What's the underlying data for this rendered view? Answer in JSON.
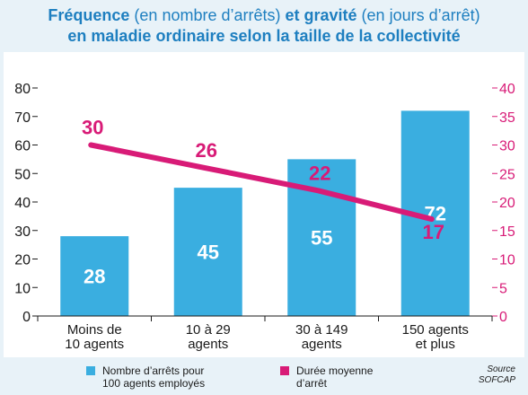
{
  "title": {
    "part1_bold": "Fréquence",
    "part2": " (en nombre d’arrêts) ",
    "part3_bold": "et gravité",
    "part4": " (en jours d’arrêt)",
    "line2_bold": "en maladie ordinaire selon la taille de la collectivité"
  },
  "colors": {
    "bar": "#3aaee0",
    "line": "#d81b77",
    "title": "#1e7fc0",
    "background": "#e8f2f8"
  },
  "chart_data": {
    "type": "bar",
    "categories": [
      [
        "Moins de",
        "10 agents"
      ],
      [
        "10 à 29",
        "agents"
      ],
      [
        "30 à 149",
        "agents"
      ],
      [
        "150 agents",
        "et plus"
      ]
    ],
    "series": [
      {
        "name": "Nombre d’arrêts pour 100 agents employés",
        "type": "bar",
        "axis": "left",
        "values": [
          28,
          45,
          55,
          72
        ],
        "labels": [
          "28",
          "45",
          "55",
          "72"
        ]
      },
      {
        "name": "Durée moyenne d’arrêt",
        "type": "line",
        "axis": "right",
        "values": [
          30,
          26,
          22,
          17
        ],
        "labels": [
          "30",
          "26",
          "22",
          "17"
        ]
      }
    ],
    "y_left": {
      "lim": [
        0,
        80
      ],
      "ticks": [
        "0",
        "10",
        "20",
        "30",
        "40",
        "50",
        "60",
        "70",
        "80"
      ]
    },
    "y_right": {
      "lim": [
        0,
        40
      ],
      "ticks": [
        "0",
        "5",
        "10",
        "15",
        "20",
        "25",
        "30",
        "35",
        "40"
      ]
    },
    "grid": false,
    "legend": "bottom"
  },
  "legend": {
    "bar_label_1": "Nombre d’arrêts pour",
    "bar_label_2": "100 agents employés",
    "line_label_1": "Durée moyenne",
    "line_label_2": "d’arrêt"
  },
  "source": {
    "line1": "Source",
    "line2": "SOFCAP"
  }
}
